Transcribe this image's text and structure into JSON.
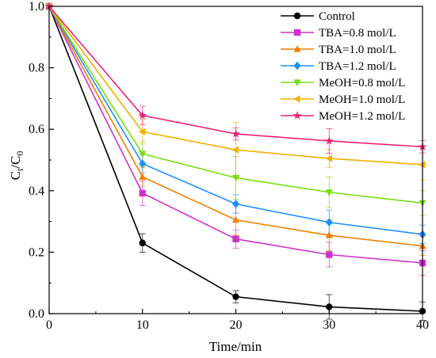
{
  "chart_data": {
    "type": "line",
    "x": [
      0,
      10,
      20,
      30,
      40
    ],
    "xlim": [
      0,
      40
    ],
    "ylim": [
      0.0,
      1.0
    ],
    "xticks": [
      "0",
      "10",
      "20",
      "30",
      "40"
    ],
    "yticks": [
      "0.0",
      "0.2",
      "0.4",
      "0.6",
      "0.8",
      "1.0"
    ],
    "xlabel": "Time/min",
    "ylabel_main": "C",
    "ylabel_sub1": "t",
    "ylabel_sep": "/C",
    "ylabel_sub2": "0",
    "legend_position": "top-right",
    "grid": false,
    "series": [
      {
        "name": "Control",
        "color": "#000000",
        "marker": "circle",
        "values": [
          1.0,
          0.23,
          0.055,
          0.022,
          0.008
        ],
        "errors": [
          0,
          0.03,
          0.02,
          0.04,
          0.03
        ]
      },
      {
        "name": "TBA=0.8 mol/L",
        "color": "#cc33cc",
        "marker": "square",
        "values": [
          1.0,
          0.392,
          0.243,
          0.192,
          0.165
        ],
        "errors": [
          0,
          0.04,
          0.03,
          0.04,
          0.04
        ]
      },
      {
        "name": "TBA=1.0 mol/L",
        "color": "#f07f00",
        "marker": "triangle-up",
        "values": [
          1.0,
          0.445,
          0.305,
          0.255,
          0.22
        ],
        "errors": [
          0,
          0.03,
          0.05,
          0.05,
          0.03
        ]
      },
      {
        "name": "TBA=1.2 mol/L",
        "color": "#1e90ff",
        "marker": "diamond",
        "values": [
          1.0,
          0.488,
          0.357,
          0.297,
          0.258
        ],
        "errors": [
          0,
          0.03,
          0.03,
          0.04,
          0.03
        ]
      },
      {
        "name": "MeOH=0.8 mol/L",
        "color": "#77dd11",
        "marker": "triangle-down",
        "values": [
          1.0,
          0.52,
          0.442,
          0.395,
          0.36
        ],
        "errors": [
          0,
          0.04,
          0.07,
          0.05,
          0.04
        ]
      },
      {
        "name": "MeOH=1.0 mol/L",
        "color": "#f0b000",
        "marker": "triangle-left",
        "values": [
          1.0,
          0.592,
          0.533,
          0.505,
          0.485
        ],
        "errors": [
          0,
          0.04,
          0.09,
          0.03,
          0.05
        ]
      },
      {
        "name": "MeOH=1.2 mol/L",
        "color": "#ee2277",
        "marker": "star",
        "values": [
          1.0,
          0.645,
          0.585,
          0.562,
          0.543
        ],
        "errors": [
          0,
          0.03,
          0.02,
          0.04,
          0.02
        ]
      }
    ]
  }
}
